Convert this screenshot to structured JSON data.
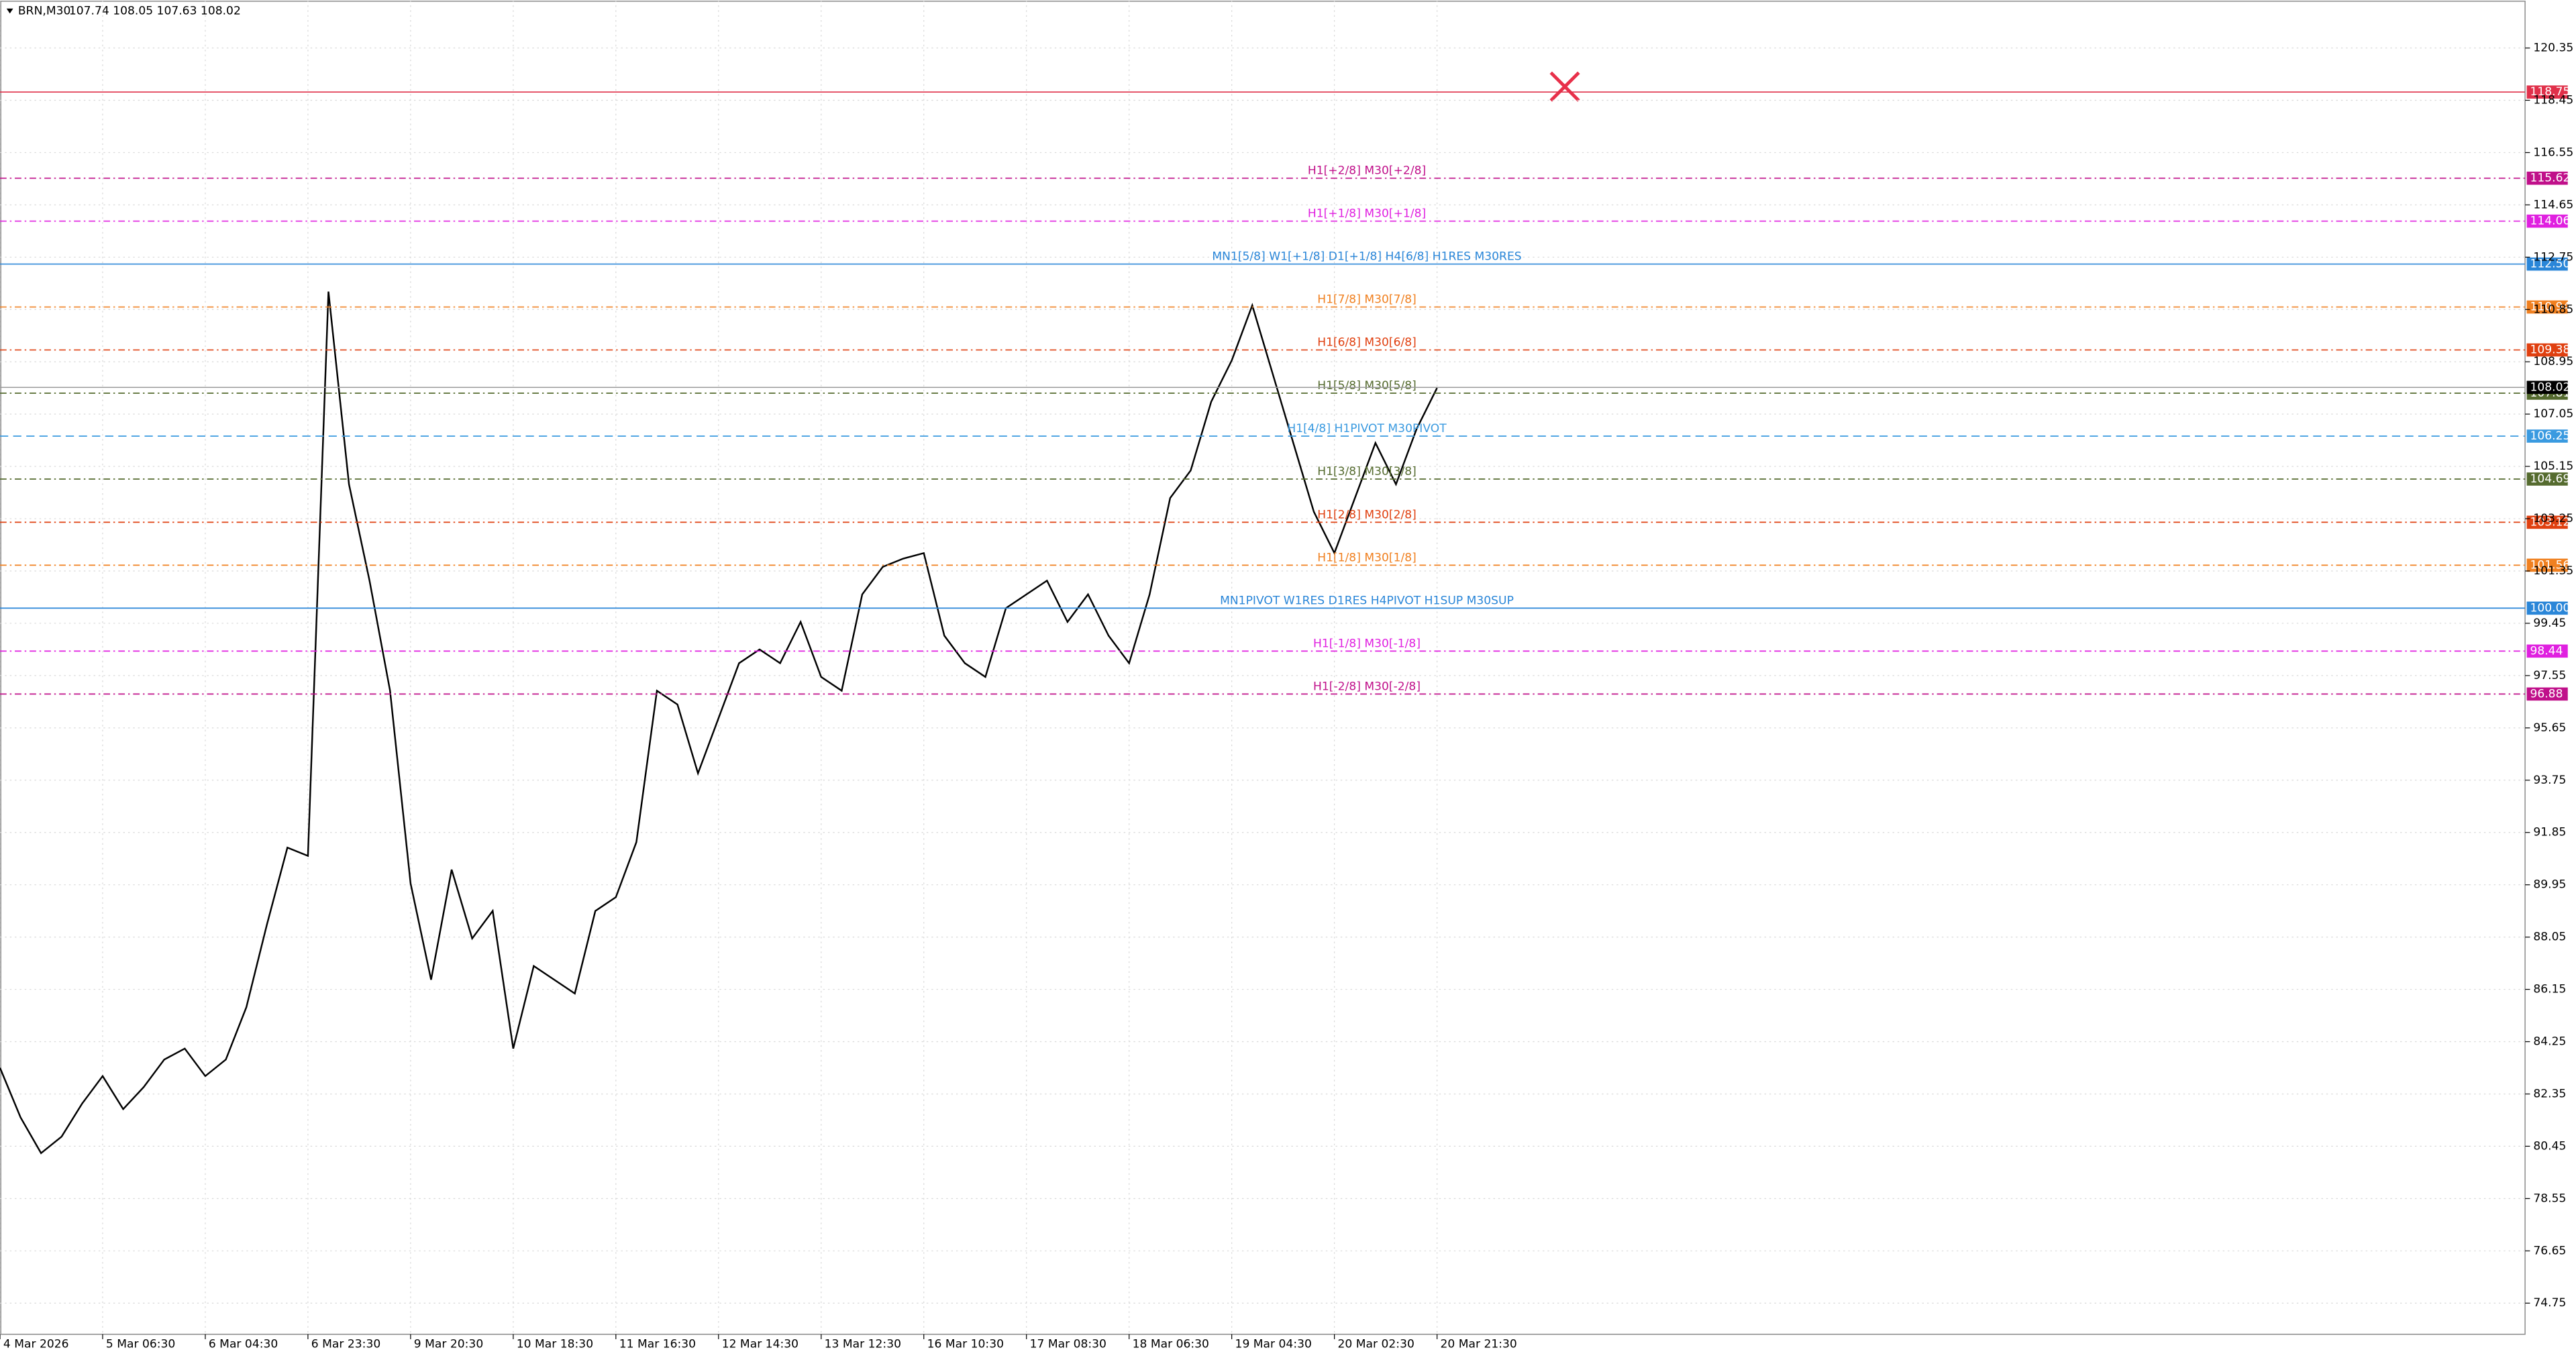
{
  "chart_data": {
    "type": "line",
    "title": "BRN,M30",
    "subtitle": "107.74 108.05 107.63 108.02",
    "x": [
      0,
      1,
      2,
      3,
      4,
      5,
      6,
      7,
      8,
      9,
      10,
      11,
      12,
      13,
      14,
      15,
      16,
      17,
      18,
      19,
      20,
      21,
      22,
      23,
      24,
      25,
      26,
      27,
      28,
      29,
      30,
      31,
      32,
      33,
      34,
      35,
      36,
      37,
      38,
      39,
      40,
      41,
      42,
      43,
      44,
      45,
      46,
      47,
      48,
      49,
      50,
      51,
      52,
      53,
      54,
      55,
      56,
      57,
      58,
      59,
      60,
      61,
      62,
      63,
      64,
      65,
      66,
      67,
      68,
      69,
      70
    ],
    "series": [
      {
        "name": "BRN",
        "color": "#000000",
        "values": [
          83.3,
          81.5,
          80.2,
          80.8,
          82.0,
          83.0,
          81.8,
          82.6,
          83.6,
          84.0,
          83.0,
          83.6,
          85.5,
          88.5,
          91.3,
          91.0,
          111.5,
          104.5,
          101.0,
          97.0,
          90.0,
          86.5,
          90.5,
          88.0,
          89.0,
          84.0,
          87.0,
          86.5,
          86.0,
          89.0,
          89.5,
          91.5,
          97.0,
          96.5,
          94.0,
          96.0,
          98.0,
          98.5,
          98.0,
          99.5,
          97.5,
          97.0,
          100.5,
          101.5,
          101.8,
          102.0,
          99.0,
          98.0,
          97.5,
          100.0,
          100.5,
          101.0,
          99.5,
          100.5,
          99.0,
          98.0,
          100.5,
          104.0,
          105.0,
          107.5,
          109.0,
          111.0,
          108.5,
          106.0,
          103.5,
          102.0,
          104.0,
          106.0,
          104.5,
          106.5,
          108.0
        ]
      }
    ],
    "xlim": [
      0,
      123
    ],
    "xticks": [
      {
        "value": 0,
        "label": "4 Mar 2026"
      },
      {
        "value": 5,
        "label": "5 Mar 06:30"
      },
      {
        "value": 10,
        "label": "6 Mar 04:30"
      },
      {
        "value": 15,
        "label": "6 Mar 23:30"
      },
      {
        "value": 20,
        "label": "9 Mar 20:30"
      },
      {
        "value": 25,
        "label": "10 Mar 18:30"
      },
      {
        "value": 30,
        "label": "11 Mar 16:30"
      },
      {
        "value": 35,
        "label": "12 Mar 14:30"
      },
      {
        "value": 40,
        "label": "13 Mar 12:30"
      },
      {
        "value": 45,
        "label": "16 Mar 10:30"
      },
      {
        "value": 50,
        "label": "17 Mar 08:30"
      },
      {
        "value": 55,
        "label": "18 Mar 06:30"
      },
      {
        "value": 60,
        "label": "19 Mar 04:30"
      },
      {
        "value": 65,
        "label": "20 Mar 02:30"
      },
      {
        "value": 70,
        "label": "20 Mar 21:30"
      }
    ],
    "ylim": [
      73.62,
      122.08
    ],
    "yticks": [
      120.35,
      118.45,
      116.55,
      114.65,
      112.75,
      110.85,
      108.95,
      107.05,
      105.15,
      103.25,
      101.35,
      99.45,
      97.55,
      95.65,
      93.75,
      91.85,
      89.95,
      88.05,
      86.15,
      84.25,
      82.35,
      80.45,
      78.55,
      76.65,
      74.75
    ],
    "grid": true,
    "levels": [
      {
        "value": 118.75,
        "value_label": "118.75",
        "color": "#e0304a",
        "style": "solid"
      },
      {
        "name": "H1[+2/8] M30[+2/8]",
        "value": 115.62,
        "value_label": "115.62",
        "color": "#c0108a",
        "style": "dashdot"
      },
      {
        "name": "H1[+1/8] M30[+1/8]",
        "value": 114.06,
        "value_label": "114.06",
        "color": "#e020e0",
        "style": "dashdot"
      },
      {
        "name": "MN1[5/8] W1[+1/8] D1[+1/8] H4[6/8] H1RES M30RES",
        "value": 112.5,
        "value_label": "112.50",
        "color": "#2a86d8",
        "style": "solid"
      },
      {
        "name": "H1[7/8] M30[7/8]",
        "value": 110.94,
        "value_label": "110.94",
        "color": "#f08020",
        "style": "dashdot"
      },
      {
        "name": "H1[6/8] M30[6/8]",
        "value": 109.38,
        "value_label": "109.38",
        "color": "#e04010",
        "style": "dashdot"
      },
      {
        "name": "H1[5/8] M30[5/8]",
        "value": 107.81,
        "value_label": "107.81",
        "color": "#556b2f",
        "style": "dashdot"
      },
      {
        "name": "H1[4/8] H1PIVOT M30PIVOT",
        "value": 106.25,
        "value_label": "106.25",
        "color": "#3a9ae0",
        "style": "dashed"
      },
      {
        "name": "H1[3/8] M30[3/8]",
        "value": 104.69,
        "value_label": "104.69",
        "color": "#556b2f",
        "style": "dashdot"
      },
      {
        "name": "H1[2/8] M30[2/8]",
        "value": 103.12,
        "value_label": "103.12",
        "color": "#e04010",
        "style": "dashdot"
      },
      {
        "name": "H1[1/8] M30[1/8]",
        "value": 101.56,
        "value_label": "101.56",
        "color": "#f08020",
        "style": "dashdot"
      },
      {
        "name": "MN1PIVOT W1RES D1RES H4PIVOT H1SUP M30SUP",
        "value": 100.0,
        "value_label": "100.00",
        "color": "#2a86d8",
        "style": "solid"
      },
      {
        "name": "H1[-1/8] M30[-1/8]",
        "value": 98.44,
        "value_label": "98.44",
        "color": "#e020e0",
        "style": "dashdot"
      },
      {
        "name": "H1[-2/8] M30[-2/8]",
        "value": 96.88,
        "value_label": "96.88",
        "color": "#c0108a",
        "style": "dashdot"
      }
    ],
    "current_price": {
      "value": 108.02,
      "value_label": "108.02",
      "color": "#000000"
    }
  }
}
